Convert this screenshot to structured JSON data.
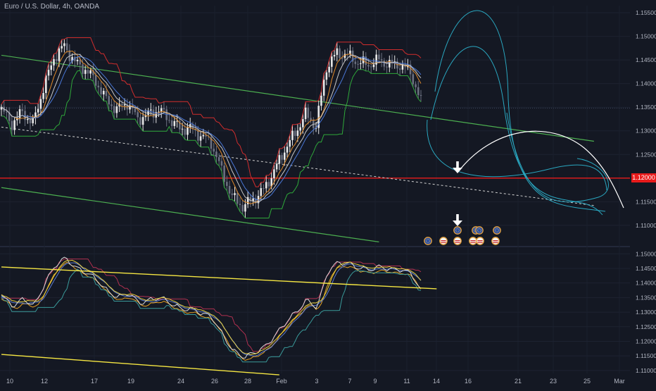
{
  "chart_title": "Euro / U.S. Dollar, 4h, OANDA",
  "price_tag": "1.12000",
  "colors": {
    "background": "#141823",
    "up_candle": "#e8e8e8",
    "down_candle": "#6b7080",
    "channel_green": "#4caf50",
    "channel_yellow": "#f5e642",
    "support_red": "#e81b1b",
    "projection_cyan": "#2aa7c0",
    "projection_white": "#ffffff"
  },
  "chart_data": [
    {
      "type": "line",
      "panel": "main",
      "title": "Euro / U.S. Dollar, 4h, OANDA",
      "x_tick_labels": [
        "10",
        "12",
        "17",
        "19",
        "24",
        "26",
        "28",
        "Feb",
        "3",
        "7",
        "9",
        "11",
        "14",
        "16",
        "21",
        "23",
        "25",
        "Mar"
      ],
      "y_tick_labels": [
        "1.15500",
        "1.15000",
        "1.14500",
        "1.14000",
        "1.13500",
        "1.13000",
        "1.12500",
        "1.12000",
        "1.11500",
        "1.11000"
      ],
      "ylim": [
        1.107,
        1.1565
      ],
      "price_path": {
        "x": [
          0,
          2,
          4,
          6,
          8,
          10,
          12,
          14,
          16,
          18,
          20,
          22,
          24,
          26,
          28,
          30,
          32,
          34,
          36,
          38,
          40,
          42,
          44,
          46,
          48,
          50,
          52,
          54,
          56,
          58,
          60,
          62,
          64,
          66,
          68,
          70,
          72,
          74,
          76,
          78,
          80
        ],
        "y": [
          1.1345,
          1.1315,
          1.134,
          1.1315,
          1.139,
          1.1455,
          1.148,
          1.1445,
          1.143,
          1.1405,
          1.1365,
          1.1345,
          1.136,
          1.1325,
          1.1335,
          1.1345,
          1.1325,
          1.1305,
          1.1305,
          1.129,
          1.1275,
          1.1215,
          1.116,
          1.114,
          1.1155,
          1.1175,
          1.1215,
          1.126,
          1.1295,
          1.1335,
          1.131,
          1.1435,
          1.1465,
          1.146,
          1.1445,
          1.144,
          1.145,
          1.144,
          1.144,
          1.1425,
          1.136
        ]
      },
      "xlim": [
        0,
        118
      ],
      "levels": [
        {
          "name": "",
          "value": 1.12,
          "style": "red-horizontal"
        }
      ],
      "channel_lines": [
        {
          "color": "green",
          "from": [
            0,
            1.146
          ],
          "to": [
            113,
            1.1278
          ]
        },
        {
          "color": "green",
          "from": [
            0,
            1.118
          ],
          "to": [
            72,
            1.1065
          ]
        },
        {
          "color": "white-dashed",
          "from": [
            0,
            1.1308
          ],
          "to": [
            113,
            1.1142
          ]
        }
      ],
      "projection_arrow_x": 87,
      "event_icons_row_value": 1.1085
    },
    {
      "type": "line",
      "panel": "indicator",
      "y_tick_labels": [
        "1.15000",
        "1.14500",
        "1.14000",
        "1.13500",
        "1.13000",
        "1.12500",
        "1.12000",
        "1.11500",
        "1.11000"
      ],
      "ylim": [
        1.109,
        1.152
      ],
      "channel_lines": [
        {
          "color": "yellow",
          "from": [
            0,
            1.1455
          ],
          "to": [
            83,
            1.138
          ]
        },
        {
          "color": "yellow",
          "from": [
            0,
            1.1155
          ],
          "to": [
            53,
            1.1085
          ]
        }
      ]
    }
  ]
}
